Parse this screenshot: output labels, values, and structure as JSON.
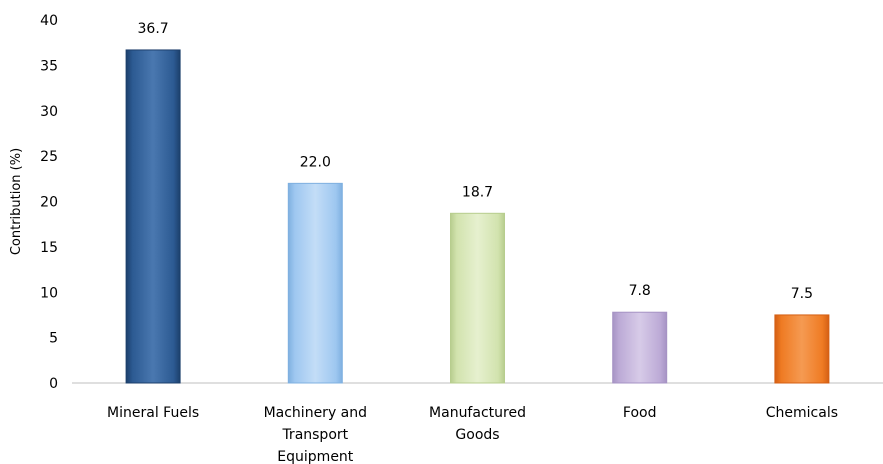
{
  "chart_data": {
    "type": "bar",
    "title": "",
    "xlabel": "",
    "ylabel": "Contribution (%)",
    "ylim": [
      0,
      40
    ],
    "yticks": [
      0,
      5,
      10,
      15,
      20,
      25,
      30,
      35,
      40
    ],
    "grid": false,
    "legend": "none",
    "categories": [
      [
        "Mineral Fuels"
      ],
      [
        "Machinery and",
        "Transport",
        "Equipment"
      ],
      [
        "Manufactured",
        "Goods"
      ],
      [
        "Food"
      ],
      [
        "Chemicals"
      ]
    ],
    "values": [
      36.7,
      22.0,
      18.7,
      7.8,
      7.5
    ],
    "value_labels": [
      "36.7",
      "22.0",
      "18.7",
      "7.8",
      "7.5"
    ],
    "colors": [
      {
        "dark": "#1c3f6b",
        "mid": "#2c5a92",
        "light": "#4a78b0"
      },
      {
        "dark": "#7fb0e0",
        "mid": "#9ec7f0",
        "light": "#c3ddf7"
      },
      {
        "dark": "#b7cd8e",
        "mid": "#d2e3ae",
        "light": "#e6f0cf"
      },
      {
        "dark": "#a693c4",
        "mid": "#bcaad6",
        "light": "#d7cbe8"
      },
      {
        "dark": "#d45f14",
        "mid": "#ef7b23",
        "light": "#f59a52"
      }
    ]
  }
}
